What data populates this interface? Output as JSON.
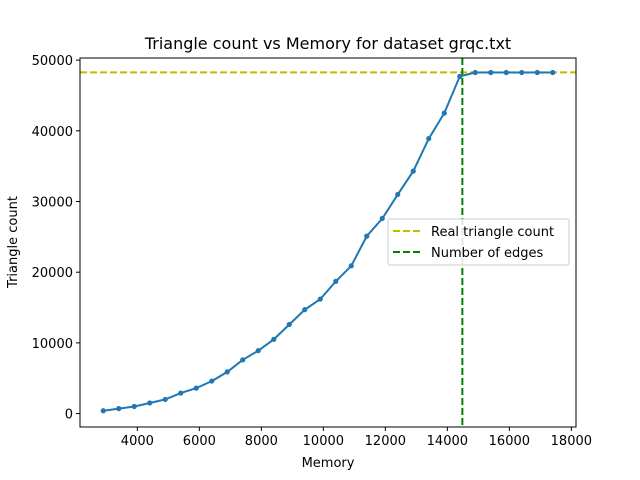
{
  "chart_data": {
    "type": "line",
    "title": "Triangle count vs Memory for dataset grqc.txt",
    "xlabel": "Memory",
    "ylabel": "Triangle count",
    "xlim": [
      2150,
      18150
    ],
    "ylim": [
      -1900,
      50300
    ],
    "x_ticks": [
      4000,
      6000,
      8000,
      10000,
      12000,
      14000,
      16000,
      18000
    ],
    "x_tick_labels": [
      "4000",
      "6000",
      "8000",
      "10000",
      "12000",
      "14000",
      "16000",
      "18000"
    ],
    "y_ticks": [
      0,
      10000,
      20000,
      30000,
      40000,
      50000
    ],
    "y_tick_labels": [
      "0",
      "10000",
      "20000",
      "30000",
      "40000",
      "50000"
    ],
    "grid": false,
    "legend_position": "center-right",
    "series": [
      {
        "color": "#1f77b4",
        "x": [
          2900,
          3400,
          3900,
          4400,
          4900,
          5400,
          5900,
          6400,
          6900,
          7400,
          7900,
          8400,
          8900,
          9400,
          9900,
          10400,
          10900,
          11400,
          11900,
          12400,
          12900,
          13400,
          13900,
          14400,
          14900,
          15400,
          15900,
          16400,
          16900,
          17400
        ],
        "values": [
          400,
          700,
          1000,
          1500,
          2000,
          2900,
          3600,
          4600,
          5900,
          7600,
          8900,
          10500,
          12600,
          14700,
          16200,
          18700,
          20900,
          25100,
          27600,
          31000,
          34300,
          38900,
          42500,
          47700,
          48250,
          48250,
          48250,
          48250,
          48250,
          48250
        ]
      }
    ],
    "reference_lines": [
      {
        "name": "Real triangle count",
        "orientation": "horizontal",
        "value": 48260,
        "color": "#bfbf00",
        "style": "dashed"
      },
      {
        "name": "Number of edges",
        "orientation": "vertical",
        "value": 14484,
        "color": "#008000",
        "style": "dashed"
      }
    ],
    "legend": [
      {
        "label": "Real triangle count",
        "color": "#bfbf00"
      },
      {
        "label": "Number of edges",
        "color": "#008000"
      }
    ]
  }
}
